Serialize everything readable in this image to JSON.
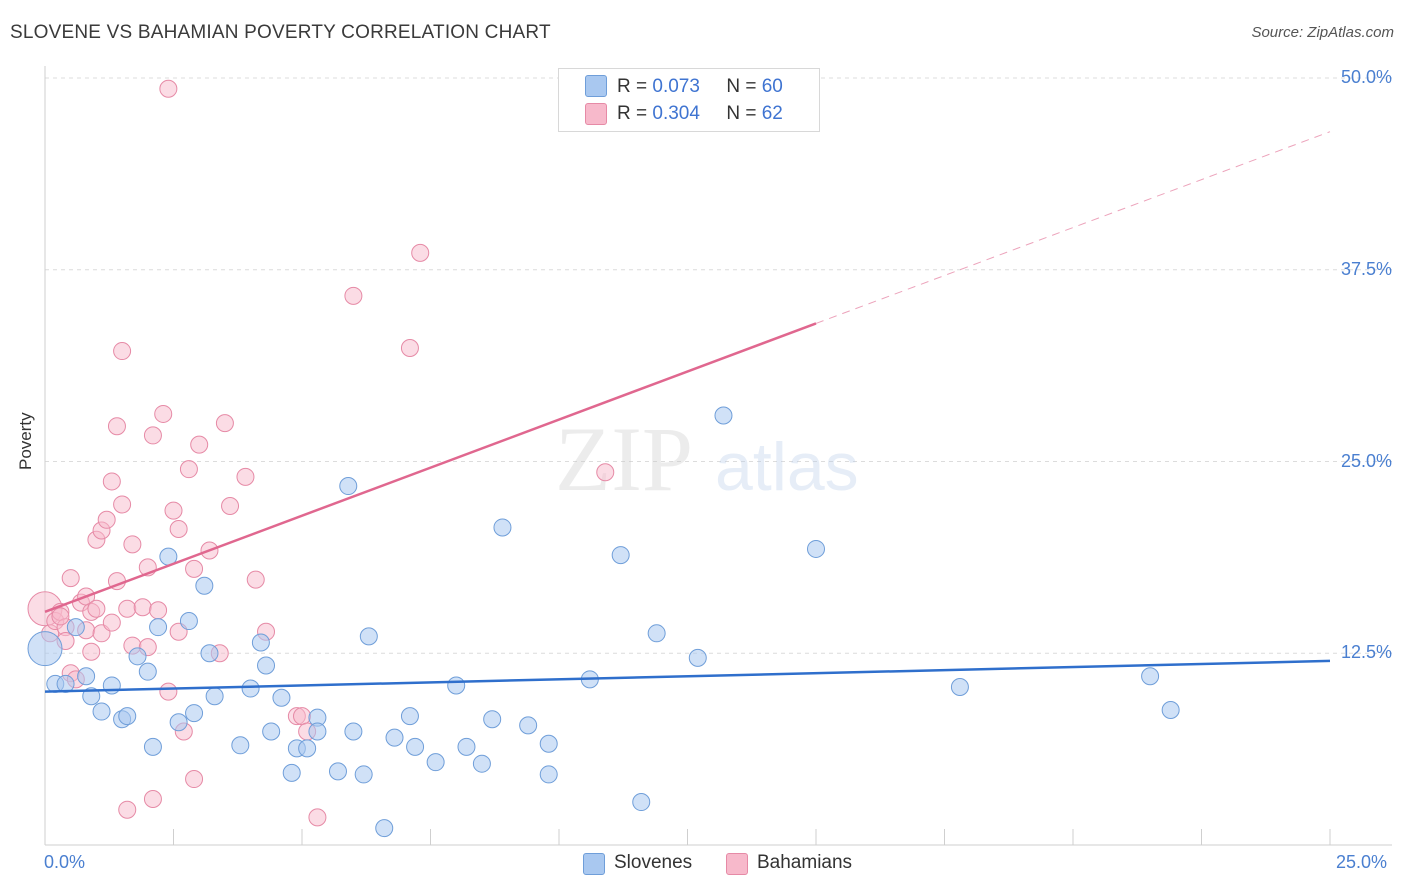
{
  "header": {
    "title": "SLOVENE VS BAHAMIAN POVERTY CORRELATION CHART",
    "source": "Source: ZipAtlas.com"
  },
  "legend": {
    "slovenes": {
      "r_label": "R =",
      "r_value": "0.073",
      "n_label": "N =",
      "n_value": "60"
    },
    "bahamians": {
      "r_label": "R =",
      "r_value": "0.304",
      "n_label": "N =",
      "n_value": "62"
    }
  },
  "bottom_legend": {
    "slovenes": "Slovenes",
    "bahamians": "Bahamians"
  },
  "colors": {
    "slovenes_fill": "#a9c8f0",
    "slovenes_stroke": "#6f9ed9",
    "slovenes_line": "#2f6fcc",
    "bahamians_fill": "#f7b9cb",
    "bahamians_stroke": "#e68aa6",
    "bahamians_line": "#e0678f",
    "tick_label": "#4a7fd0"
  },
  "chart_data": {
    "type": "scatter",
    "title": "SLOVENE VS BAHAMIAN POVERTY CORRELATION CHART",
    "ylabel": "Poverty",
    "xlabel": "",
    "xlim": [
      0,
      25
    ],
    "ylim": [
      0,
      50
    ],
    "x_tick_labels": [
      "0.0%",
      "25.0%"
    ],
    "y_ticks": [
      12.5,
      25.0,
      37.5,
      50.0
    ],
    "y_tick_labels": [
      "12.5%",
      "25.0%",
      "37.5%",
      "50.0%"
    ],
    "grid": "horizontal dashed",
    "legend_position": "top-center",
    "series": [
      {
        "name": "Slovenes",
        "r": 0.073,
        "n": 60,
        "trend": [
          [
            0,
            10.0
          ],
          [
            25,
            12.0
          ]
        ],
        "points": [
          [
            0.0,
            12.8
          ],
          [
            0.2,
            10.5
          ],
          [
            0.4,
            10.5
          ],
          [
            0.6,
            14.2
          ],
          [
            0.8,
            11.0
          ],
          [
            0.9,
            9.7
          ],
          [
            1.1,
            8.7
          ],
          [
            1.3,
            10.4
          ],
          [
            1.5,
            8.2
          ],
          [
            1.6,
            8.4
          ],
          [
            1.8,
            12.3
          ],
          [
            2.0,
            11.3
          ],
          [
            2.1,
            6.4
          ],
          [
            2.2,
            14.2
          ],
          [
            2.4,
            18.8
          ],
          [
            2.6,
            8.0
          ],
          [
            2.8,
            14.6
          ],
          [
            2.9,
            8.6
          ],
          [
            3.1,
            16.9
          ],
          [
            3.3,
            9.7
          ],
          [
            3.2,
            12.5
          ],
          [
            3.8,
            6.5
          ],
          [
            4.0,
            10.2
          ],
          [
            4.2,
            13.2
          ],
          [
            4.3,
            11.7
          ],
          [
            4.4,
            7.4
          ],
          [
            4.6,
            9.6
          ],
          [
            4.8,
            4.7
          ],
          [
            4.9,
            6.3
          ],
          [
            5.1,
            6.3
          ],
          [
            5.3,
            8.3
          ],
          [
            5.3,
            7.4
          ],
          [
            5.7,
            4.8
          ],
          [
            5.9,
            23.4
          ],
          [
            6.0,
            7.4
          ],
          [
            6.2,
            4.6
          ],
          [
            6.3,
            13.6
          ],
          [
            6.6,
            1.1
          ],
          [
            6.8,
            7.0
          ],
          [
            7.1,
            8.4
          ],
          [
            7.2,
            6.4
          ],
          [
            7.6,
            5.4
          ],
          [
            8.0,
            10.4
          ],
          [
            8.2,
            6.4
          ],
          [
            8.5,
            5.3
          ],
          [
            8.7,
            8.2
          ],
          [
            8.9,
            20.7
          ],
          [
            9.4,
            7.8
          ],
          [
            9.8,
            6.6
          ],
          [
            9.8,
            4.6
          ],
          [
            10.6,
            10.8
          ],
          [
            11.2,
            18.9
          ],
          [
            11.6,
            2.8
          ],
          [
            11.9,
            13.8
          ],
          [
            12.7,
            12.2
          ],
          [
            13.2,
            28.0
          ],
          [
            15.0,
            19.3
          ],
          [
            17.8,
            10.3
          ],
          [
            21.5,
            11.0
          ],
          [
            21.9,
            8.8
          ]
        ]
      },
      {
        "name": "Bahamians",
        "r": 0.304,
        "n": 62,
        "trend": [
          [
            0,
            15.2
          ],
          [
            15,
            34.0
          ]
        ],
        "trend_extension": [
          [
            15,
            34.0
          ],
          [
            25,
            46.5
          ]
        ],
        "points": [
          [
            0.0,
            15.4
          ],
          [
            0.1,
            13.8
          ],
          [
            0.2,
            14.6
          ],
          [
            0.3,
            15.2
          ],
          [
            0.4,
            14.2
          ],
          [
            0.4,
            13.3
          ],
          [
            0.5,
            17.4
          ],
          [
            0.5,
            11.2
          ],
          [
            0.6,
            10.8
          ],
          [
            0.7,
            15.8
          ],
          [
            0.8,
            16.2
          ],
          [
            0.8,
            14.0
          ],
          [
            0.9,
            15.2
          ],
          [
            0.9,
            12.6
          ],
          [
            1.0,
            15.4
          ],
          [
            1.0,
            19.9
          ],
          [
            1.1,
            20.5
          ],
          [
            1.1,
            13.8
          ],
          [
            1.2,
            21.2
          ],
          [
            1.3,
            23.7
          ],
          [
            1.3,
            14.5
          ],
          [
            1.4,
            17.2
          ],
          [
            1.4,
            27.3
          ],
          [
            1.5,
            32.2
          ],
          [
            1.5,
            22.2
          ],
          [
            1.6,
            15.4
          ],
          [
            1.7,
            19.6
          ],
          [
            1.7,
            13.0
          ],
          [
            1.9,
            15.5
          ],
          [
            2.0,
            12.9
          ],
          [
            2.0,
            18.1
          ],
          [
            2.1,
            3.0
          ],
          [
            2.1,
            26.7
          ],
          [
            2.2,
            15.3
          ],
          [
            2.3,
            28.1
          ],
          [
            2.4,
            49.3
          ],
          [
            2.4,
            10.0
          ],
          [
            2.5,
            21.8
          ],
          [
            2.6,
            20.6
          ],
          [
            2.6,
            13.9
          ],
          [
            2.7,
            7.4
          ],
          [
            2.8,
            24.5
          ],
          [
            2.9,
            4.3
          ],
          [
            2.9,
            18.0
          ],
          [
            3.0,
            26.1
          ],
          [
            3.2,
            19.2
          ],
          [
            3.4,
            12.5
          ],
          [
            3.5,
            27.5
          ],
          [
            3.6,
            22.1
          ],
          [
            3.9,
            24.0
          ],
          [
            4.1,
            17.3
          ],
          [
            4.3,
            13.9
          ],
          [
            4.9,
            8.4
          ],
          [
            5.0,
            8.4
          ],
          [
            5.1,
            7.4
          ],
          [
            5.3,
            1.8
          ],
          [
            6.0,
            35.8
          ],
          [
            7.1,
            32.4
          ],
          [
            7.3,
            38.6
          ],
          [
            10.9,
            24.3
          ],
          [
            1.6,
            2.3
          ],
          [
            0.3,
            14.9
          ]
        ]
      }
    ]
  }
}
